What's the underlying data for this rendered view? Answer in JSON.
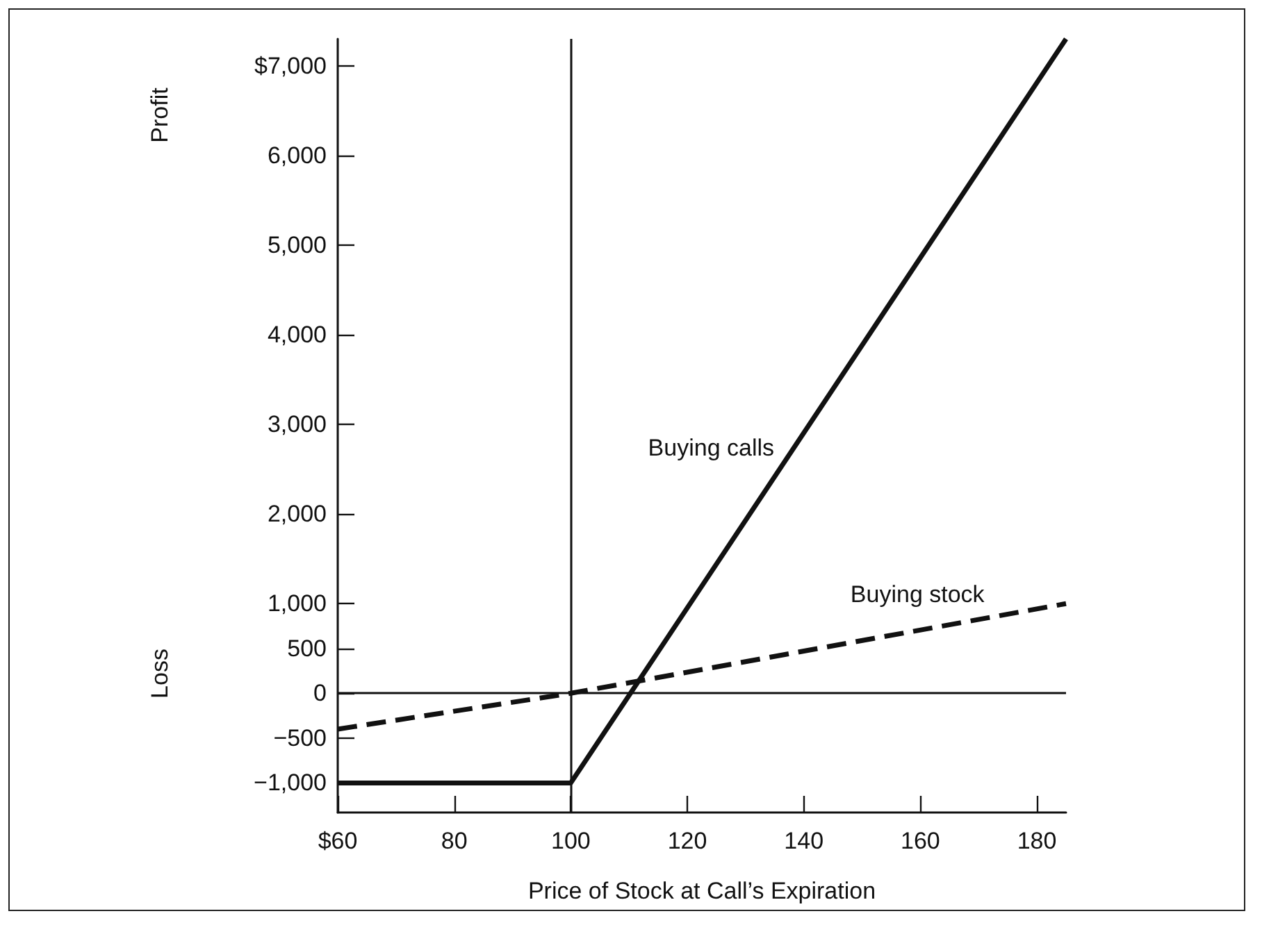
{
  "chart_data": {
    "type": "line",
    "xlabel": "Price of Stock at Call’s Expiration",
    "annotations": [
      "Profit",
      "Loss"
    ],
    "x": [
      60,
      100,
      185
    ],
    "series": [
      {
        "name": "Buying calls",
        "color": "#111111",
        "values": [
          -1000,
          -1000,
          7300
        ],
        "line_style": "solid"
      },
      {
        "name": "Buying stock",
        "color": "#111111",
        "values": [
          -400,
          0,
          1000
        ],
        "line_style": "dashed"
      }
    ],
    "xlim": [
      60,
      185
    ],
    "xticks": [
      {
        "value": 60,
        "label": "$60"
      },
      80,
      100,
      120,
      140,
      160,
      180
    ],
    "ylim": [
      -1330,
      7300
    ],
    "yticks": [
      {
        "value": -1000,
        "label": "−1,000"
      },
      {
        "value": -500,
        "label": "−500"
      },
      0,
      500,
      {
        "value": 1000,
        "label": "1,000"
      },
      {
        "value": 2000,
        "label": "2,000"
      },
      {
        "value": 3000,
        "label": "3,000"
      },
      {
        "value": 4000,
        "label": "4,000"
      },
      {
        "value": 5000,
        "label": "5,000"
      },
      {
        "value": 6000,
        "label": "6,000"
      },
      {
        "value": 7000,
        "label": "$7,000"
      }
    ],
    "ref_lines": [
      {
        "axis": "x",
        "value": 100
      },
      {
        "axis": "y",
        "value": 0
      }
    ],
    "marker": "none",
    "grid": false,
    "legend": false
  }
}
